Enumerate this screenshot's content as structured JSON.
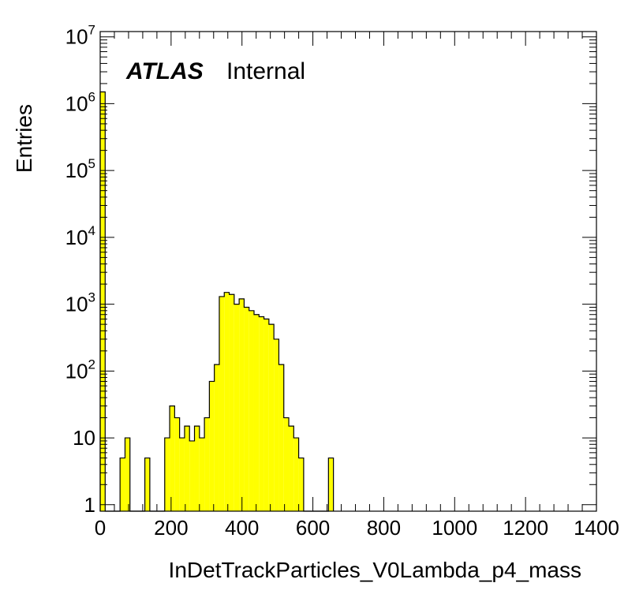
{
  "chart_data": {
    "type": "histogram",
    "title": "",
    "xlabel": "InDetTrackParticles_V0Lambda_p4_mass",
    "ylabel": "Entries",
    "xlim": [
      0,
      1400
    ],
    "ylim": [
      0.8,
      12000000
    ],
    "yscale": "log",
    "grid": false,
    "legend": "none",
    "fill_color": "#ffff00",
    "line_color": "#000000",
    "annotation": {
      "bold": "ATLAS",
      "normal": "Internal"
    },
    "x_ticks": [
      "0",
      "200",
      "400",
      "600",
      "800",
      "1000",
      "1200",
      "1400"
    ],
    "y_ticks": [
      {
        "value": 1,
        "base": "1",
        "exp": ""
      },
      {
        "value": 10,
        "base": "10",
        "exp": ""
      },
      {
        "value": 100,
        "base": "10",
        "exp": "2"
      },
      {
        "value": 1000,
        "base": "10",
        "exp": "3"
      },
      {
        "value": 10000,
        "base": "10",
        "exp": "4"
      },
      {
        "value": 100000,
        "base": "10",
        "exp": "5"
      },
      {
        "value": 1000000,
        "base": "10",
        "exp": "6"
      },
      {
        "value": 10000000,
        "base": "10",
        "exp": "7"
      }
    ],
    "bin_edges": [
      0,
      14,
      28,
      42,
      56,
      70,
      84,
      98,
      112,
      126,
      140,
      154,
      168,
      182,
      196,
      210,
      224,
      238,
      252,
      266,
      280,
      294,
      308,
      322,
      336,
      350,
      364,
      378,
      392,
      406,
      420,
      434,
      448,
      462,
      476,
      490,
      504,
      518,
      532,
      546,
      560,
      574,
      588,
      602,
      616,
      630,
      644,
      658
    ],
    "values": [
      1500000,
      0,
      0,
      0,
      5,
      10,
      0,
      0,
      0,
      5,
      0,
      0,
      0,
      10,
      30,
      20,
      10,
      15,
      9,
      15,
      10,
      20,
      70,
      125,
      1300,
      1500,
      1400,
      1000,
      1200,
      900,
      800,
      700,
      650,
      600,
      500,
      300,
      125,
      20,
      15,
      10,
      5,
      0,
      0,
      0,
      0,
      0,
      5
    ]
  }
}
